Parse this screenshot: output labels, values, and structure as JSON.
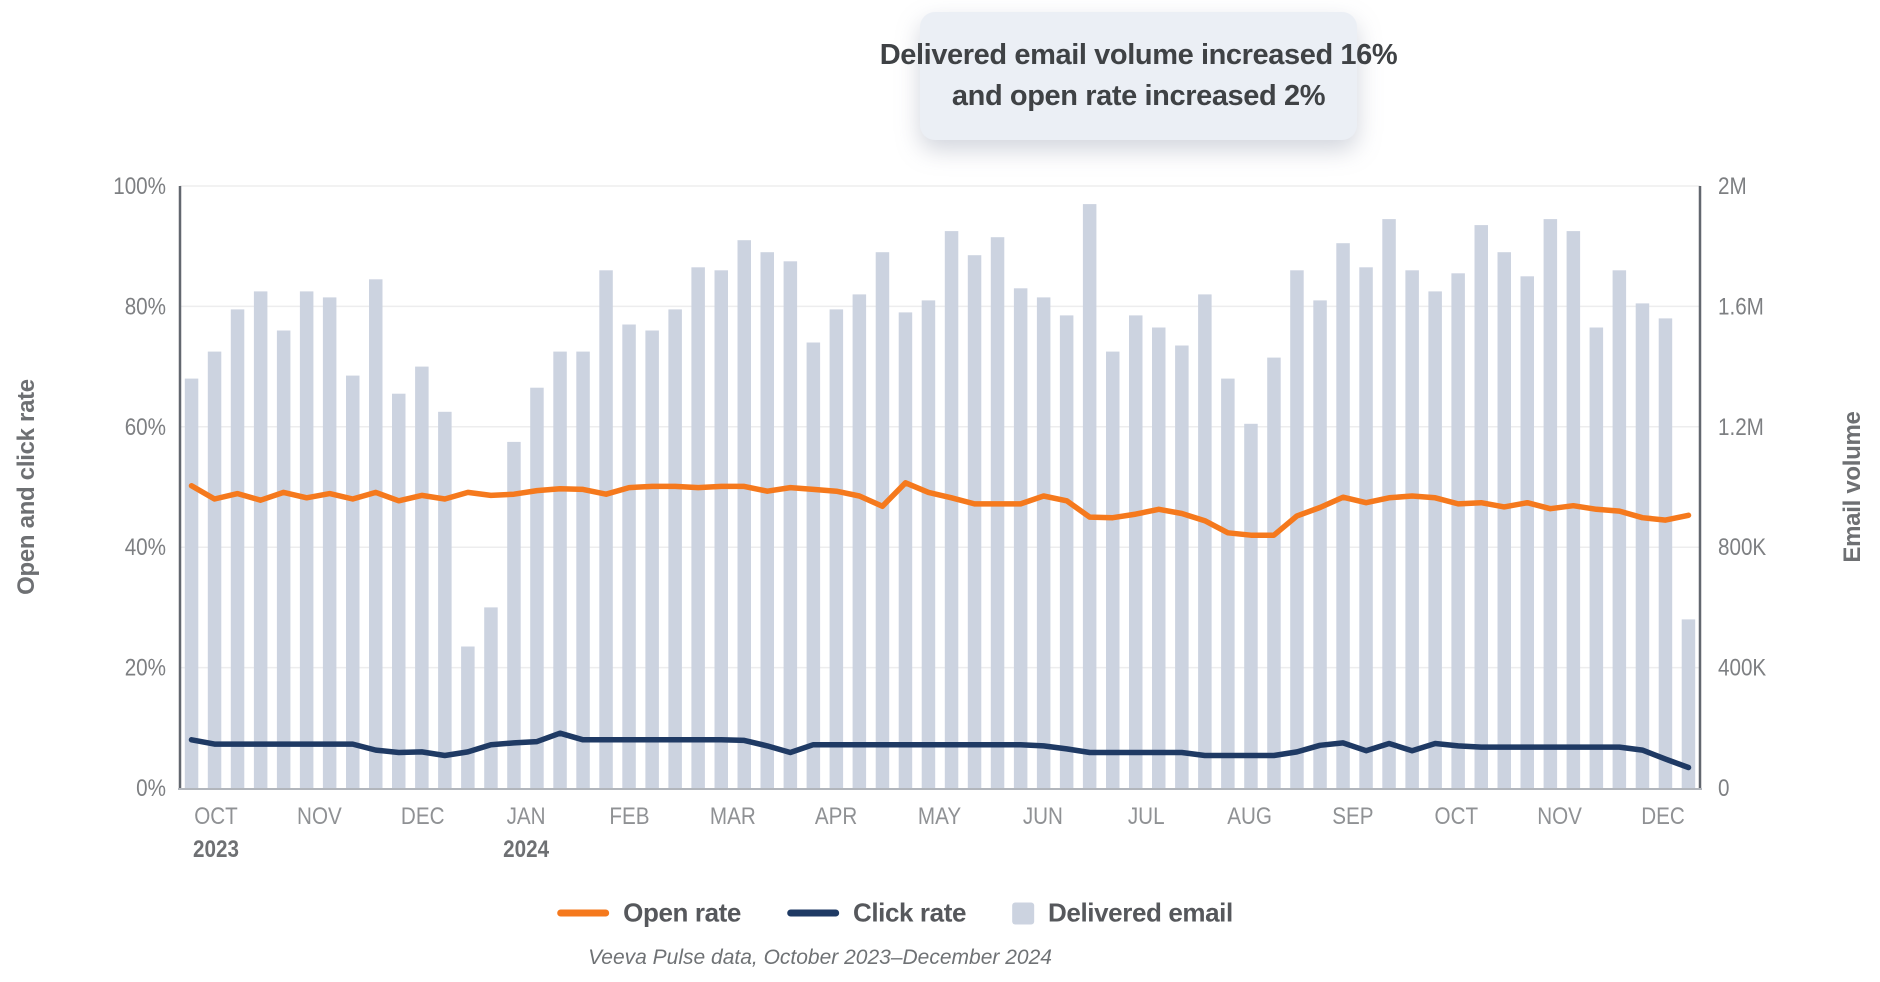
{
  "callout": {
    "line1": "Delivered email volume increased 16%",
    "line2": "and open rate increased 2%"
  },
  "axes": {
    "left_title": "Open and click rate",
    "right_title": "Email volume"
  },
  "legend": {
    "open_rate": {
      "label": "Open rate",
      "color": "#f5791d"
    },
    "click_rate": {
      "label": "Click rate",
      "color": "#1f3a64"
    },
    "delivered_email": {
      "label": "Delivered email",
      "color": "#ccd3e0"
    }
  },
  "caption": "Veeva Pulse data, October 2023–December 2024",
  "chart_data": {
    "type": "bar",
    "subtype": "combo weekly bars (delivered email volume, right axis) with two lines (open rate and click rate, left axis)",
    "title": "Delivered email volume increased 16% and open rate increased 2%",
    "xlabel": "",
    "ylabel_left": "Open and click rate",
    "ylabel_right": "Email volume",
    "grid": "horizontal light-gray lines at 20% steps",
    "legend_position": "bottom-center",
    "months": [
      {
        "label": "OCT",
        "year": "2023",
        "weeks": 4
      },
      {
        "label": "NOV",
        "weeks": 4
      },
      {
        "label": "DEC",
        "weeks": 5
      },
      {
        "label": "JAN",
        "year": "2024",
        "weeks": 5
      },
      {
        "label": "FEB",
        "weeks": 4
      },
      {
        "label": "MAR",
        "weeks": 5
      },
      {
        "label": "APR",
        "weeks": 4
      },
      {
        "label": "MAY",
        "weeks": 5
      },
      {
        "label": "JUN",
        "weeks": 4
      },
      {
        "label": "JUL",
        "weeks": 5
      },
      {
        "label": "AUG",
        "weeks": 4
      },
      {
        "label": "SEP",
        "weeks": 4
      },
      {
        "label": "OCT",
        "weeks": 5
      },
      {
        "label": "NOV",
        "weeks": 4
      },
      {
        "label": "DEC",
        "weeks": 4
      }
    ],
    "weekly": {
      "delivered_email_millions": [
        1.36,
        1.45,
        1.59,
        1.65,
        1.52,
        1.65,
        1.63,
        1.37,
        1.69,
        1.31,
        1.4,
        1.25,
        0.47,
        0.6,
        1.15,
        1.33,
        1.45,
        1.45,
        1.72,
        1.54,
        1.52,
        1.59,
        1.73,
        1.72,
        1.82,
        1.78,
        1.75,
        1.48,
        1.59,
        1.64,
        1.78,
        1.58,
        1.62,
        1.85,
        1.77,
        1.83,
        1.66,
        1.63,
        1.57,
        1.94,
        1.45,
        1.57,
        1.53,
        1.47,
        1.64,
        1.36,
        1.21,
        1.43,
        1.72,
        1.62,
        1.81,
        1.73,
        1.89,
        1.72,
        1.65,
        1.71,
        1.87,
        1.78,
        1.7,
        1.89,
        1.85,
        1.53,
        1.72,
        1.61,
        1.56,
        0.56
      ],
      "open_rate_pct": [
        50.2,
        48.0,
        48.9,
        47.8,
        49.1,
        48.2,
        48.9,
        48.0,
        49.1,
        47.7,
        48.6,
        48.0,
        49.1,
        48.6,
        48.8,
        49.4,
        49.7,
        49.6,
        48.8,
        49.9,
        50.1,
        50.1,
        49.9,
        50.1,
        50.1,
        49.3,
        49.9,
        49.6,
        49.3,
        48.5,
        46.8,
        50.7,
        49.1,
        48.2,
        47.2,
        47.2,
        47.2,
        48.5,
        47.7,
        45.0,
        44.9,
        45.5,
        46.3,
        45.6,
        44.4,
        42.4,
        42.0,
        42.0,
        45.2,
        46.6,
        48.3,
        47.4,
        48.2,
        48.5,
        48.2,
        47.2,
        47.4,
        46.7,
        47.4,
        46.4,
        46.9,
        46.3,
        46.0,
        44.9,
        44.5,
        45.3
      ],
      "click_rate_pct": [
        8.0,
        7.3,
        7.3,
        7.3,
        7.3,
        7.3,
        7.3,
        7.3,
        6.3,
        5.9,
        6.0,
        5.4,
        6.0,
        7.2,
        7.5,
        7.7,
        9.1,
        8.0,
        8.0,
        8.0,
        8.0,
        8.0,
        8.0,
        8.0,
        7.9,
        7.0,
        5.9,
        7.2,
        7.2,
        7.2,
        7.2,
        7.2,
        7.2,
        7.2,
        7.2,
        7.2,
        7.2,
        7.0,
        6.5,
        5.9,
        5.9,
        5.9,
        5.9,
        5.9,
        5.4,
        5.4,
        5.4,
        5.4,
        6.0,
        7.1,
        7.5,
        6.2,
        7.4,
        6.2,
        7.4,
        7.0,
        6.8,
        6.8,
        6.8,
        6.8,
        6.8,
        6.8,
        6.8,
        6.3,
        4.8,
        3.4
      ]
    },
    "left_axis": {
      "label": "Open and click rate",
      "min": 0,
      "max": 100,
      "tick_labels": [
        "100%",
        "80%",
        "60%",
        "40%",
        "20%",
        "0%"
      ],
      "tick_values": [
        100,
        80,
        60,
        40,
        20,
        0
      ]
    },
    "right_axis": {
      "label": "Email volume",
      "min": 0,
      "max_value_m": 2,
      "tick_labels": [
        "2M",
        "1.6M",
        "1.2M",
        "800K",
        "400K",
        "0"
      ],
      "tick_values_m": [
        2,
        1.6,
        1.2,
        0.8,
        0.4,
        0
      ]
    },
    "colors": {
      "bar": "#ccd3e0",
      "open_rate": "#f5791d",
      "click_rate": "#1f3a64"
    }
  }
}
